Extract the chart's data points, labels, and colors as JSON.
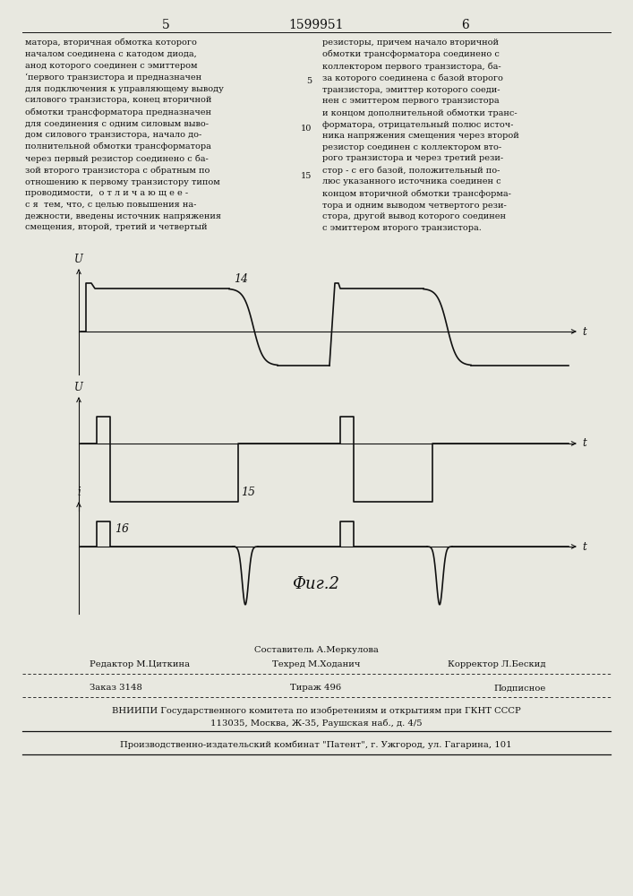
{
  "page_number_left": "5",
  "page_number_center": "1599951",
  "page_number_right": "6",
  "text_left": "матора, вторичная обмотка которого\nначалом соединена с катодом диода,\nанод которого соединен с эмиттером\n‘первого транзистора и предназначен\nдля подключения к управляющему выводу\nсилового транзистора, конец вторичной\nобмотки трансформатора предназначен\nдля соединения с одним силовым выво-\nдом силового транзистора, начало до-\nполнительной обмотки трансформатора\nчерез первый резистор соединено с ба-\nзой второго транзистора с обратным по\nотношению к первому транзистору типом\nпроводимости,  о т л и ч а ю щ е е -\nс я  тем, что, с целью повышения на-\nдежности, введены источник напряжения\nсмещения, второй, третий и четвертый",
  "text_right": "резисторы, причем начало вторичной\nобмотки трансформатора соединено с\nколлектором первого транзистора, ба-\nза которого соединена с базой второго\nтранзистора, эмиттер которого соеди-\nнен с эмиттером первого транзистора\nи концом дополнительной обмотки транс-\nформатора, отрицательный полюс источ-\nника напряжения смещения через второй\nрезистор соединен с коллектором вто-\nрого транзистора и через третий рези-\nстор - с его базой, положительный по-\nлюс указанного источника соединен с\nконцом вторичной обмотки трансформа-\nтора и одним выводом четвертого рези-\nстора, другой вывод которого соединен\nс эмиттером второго транзистора.",
  "line_numbers_right": [
    "5",
    "10",
    "15"
  ],
  "footer_line1_center_top": "Составитель А.Меркулова",
  "footer_line1_left": "Редактор М.Циткина",
  "footer_line1_center": "Техред М.Ходанич",
  "footer_line1_right": "Корректор Л.Бескид",
  "footer_line2_left": "Заказ 3148",
  "footer_line2_center": "Тираж 496",
  "footer_line2_right": "Подписное",
  "footer_line3": "ВНИИПИ Государственного комитета по изобретениям и открытиям при ГКНТ СССР",
  "footer_line4": "113035, Москва, Ж-35, Раушская наб., д. 4/5",
  "footer_line5": "Производственно-издательский комбинат \"Патент\", г. Ужгород, ул. Гагарина, 101",
  "bg_color": "#e8e8e0",
  "line_color": "#111111"
}
